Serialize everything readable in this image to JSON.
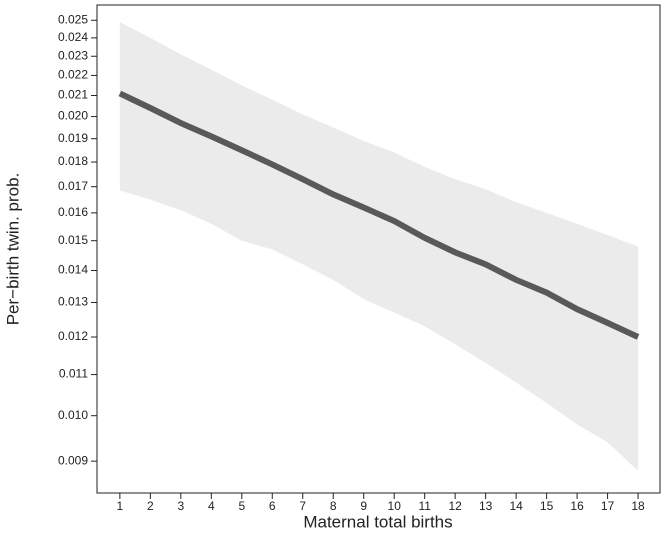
{
  "chart_data": {
    "type": "line",
    "x_label": "Maternal total births",
    "y_label": "Per−birth twin. prob.",
    "x": [
      1,
      2,
      3,
      4,
      5,
      6,
      7,
      8,
      9,
      10,
      11,
      12,
      13,
      14,
      15,
      16,
      17,
      18
    ],
    "line": {
      "color": "#595959",
      "values": [
        0.0211,
        0.0204,
        0.0197,
        0.0191,
        0.0185,
        0.0179,
        0.0173,
        0.0167,
        0.0162,
        0.0157,
        0.0151,
        0.0146,
        0.0142,
        0.0137,
        0.0133,
        0.0128,
        0.0124,
        0.012
      ]
    },
    "band": {
      "color": "#ebebeb",
      "upper": [
        0.0249,
        0.024,
        0.0231,
        0.0223,
        0.0215,
        0.0208,
        0.0201,
        0.0195,
        0.0189,
        0.0184,
        0.0178,
        0.0173,
        0.0169,
        0.0164,
        0.016,
        0.0156,
        0.0152,
        0.0148
      ],
      "lower": [
        0.01685,
        0.0165,
        0.0161,
        0.0156,
        0.015,
        0.0147,
        0.0142,
        0.0137,
        0.0131,
        0.0127,
        0.0123,
        0.0118,
        0.0113,
        0.0108,
        0.0103,
        0.0098,
        0.0094,
        0.0088
      ]
    },
    "xlim": [
      0.25,
      18.72
    ],
    "xticks": [
      1,
      2,
      3,
      4,
      5,
      6,
      7,
      8,
      9,
      10,
      11,
      12,
      13,
      14,
      15,
      16,
      17,
      18
    ],
    "ylim": [
      0.00836,
      0.0259
    ],
    "y_log": true,
    "yticks": [
      0.009,
      {
        "value": 0.01,
        "label": "0.010"
      },
      0.011,
      0.012,
      0.013,
      0.014,
      0.015,
      0.016,
      0.017,
      0.018,
      0.019,
      {
        "value": 0.02,
        "label": "0.020"
      },
      0.021,
      0.022,
      0.023,
      0.024,
      0.025
    ]
  }
}
